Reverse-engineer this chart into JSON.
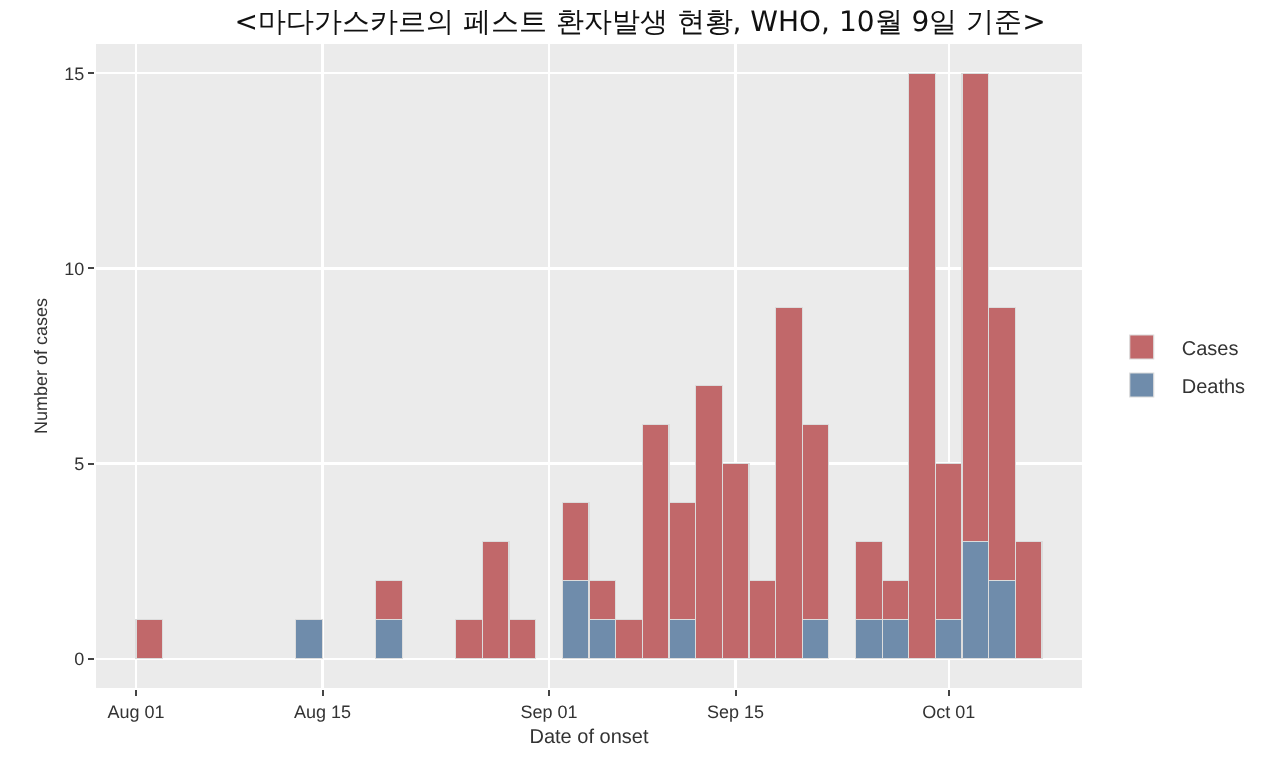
{
  "chart_data": {
    "type": "bar",
    "title": "<마다가스카르의 페스트 환자발생 현황, WHO, 10월 9일 기준>",
    "xlabel": "Date of onset",
    "ylabel": "Number of cases",
    "x": [
      "--08-02",
      "--08-14",
      "--08-20",
      "--08-26",
      "--08-28",
      "--08-30",
      "--09-03",
      "--09-05",
      "--09-07",
      "--09-09",
      "--09-11",
      "--09-13",
      "--09-15",
      "--09-17",
      "--09-19",
      "--09-21",
      "--09-25",
      "--09-27",
      "--09-29",
      "--10-01",
      "--10-03",
      "--10-05",
      "--10-07"
    ],
    "stacked": true,
    "series": [
      {
        "name": "Deaths",
        "color": "#6f8cab",
        "values": [
          null,
          1,
          1,
          null,
          null,
          null,
          2,
          1,
          null,
          null,
          1,
          null,
          null,
          null,
          null,
          1,
          1,
          1,
          null,
          1,
          3,
          2,
          null
        ]
      },
      {
        "name": "Cases",
        "color": "#c1686a",
        "values": [
          1,
          null,
          1,
          1,
          3,
          1,
          2,
          1,
          1,
          6,
          3,
          7,
          5,
          2,
          9,
          5,
          2,
          1,
          15,
          4,
          12,
          7,
          3
        ]
      }
    ],
    "xlim": [
      "--07-29",
      "--10-11"
    ],
    "xticks": [
      {
        "value": "--08-01",
        "label": "Aug 01"
      },
      {
        "value": "--08-15",
        "label": "Aug 15"
      },
      {
        "value": "--09-01",
        "label": "Sep 01"
      },
      {
        "value": "--09-15",
        "label": "Sep 15"
      },
      {
        "value": "--10-01",
        "label": "Oct 01"
      }
    ],
    "ylim": [
      -0.75,
      15.75
    ],
    "yticks": [
      0,
      5,
      10,
      15
    ],
    "grid": true,
    "legend": "right"
  }
}
